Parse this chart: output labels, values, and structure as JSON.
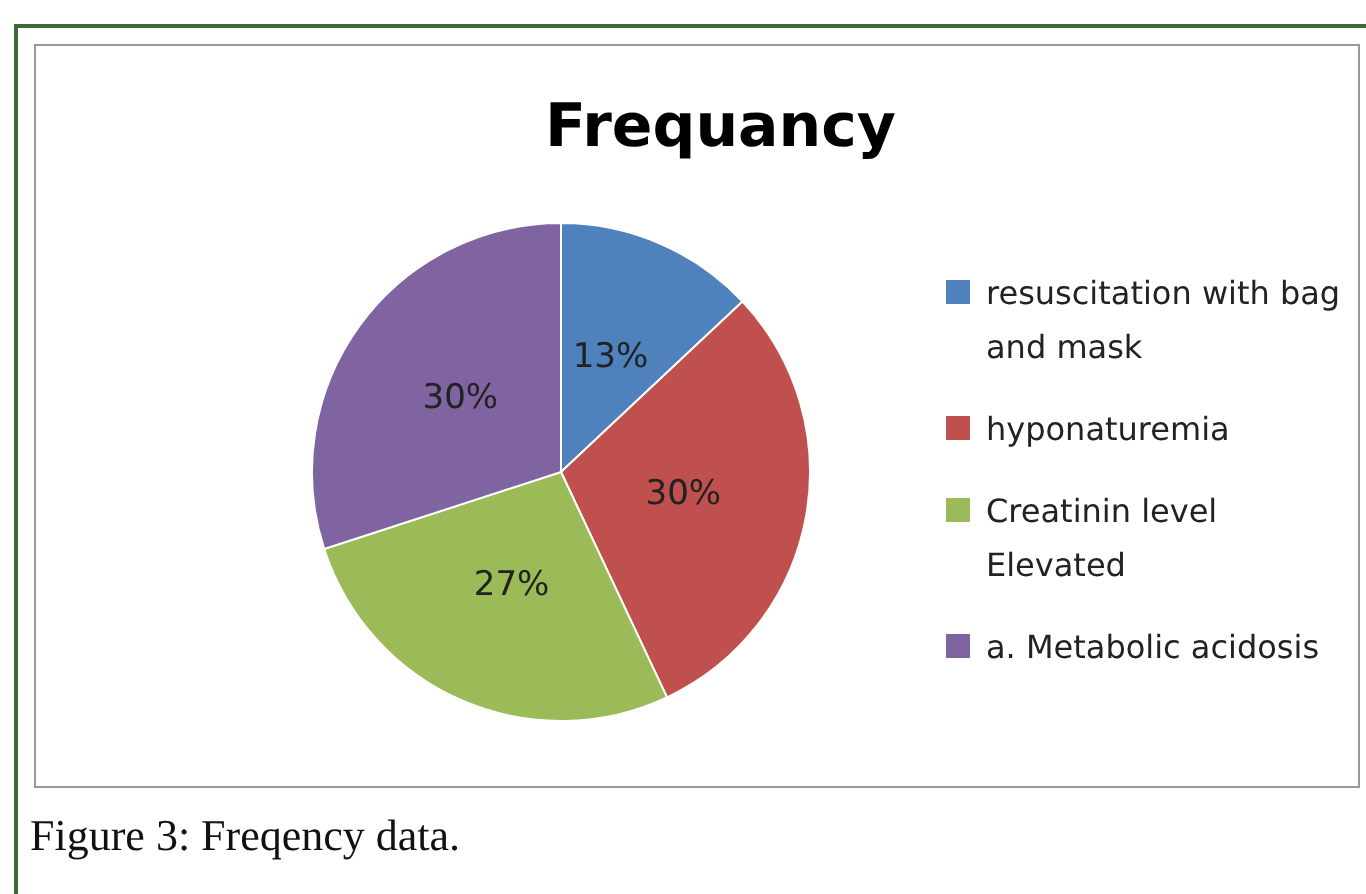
{
  "chart_data": {
    "type": "pie",
    "title": "Frequancy",
    "categories": [
      "resuscitation with bag and mask",
      "hyponaturemia",
      "Creatinin level Elevated",
      "a. Metabolic acidosis"
    ],
    "values": [
      13,
      30,
      27,
      30
    ],
    "colors": [
      "#4f81bd",
      "#c0504d",
      "#9bbb59",
      "#8064a2"
    ],
    "value_labels": [
      "13%",
      "30%",
      "27%",
      "30%"
    ],
    "legend": "right",
    "annotations": [
      "Figure 3: Freqency data."
    ]
  }
}
